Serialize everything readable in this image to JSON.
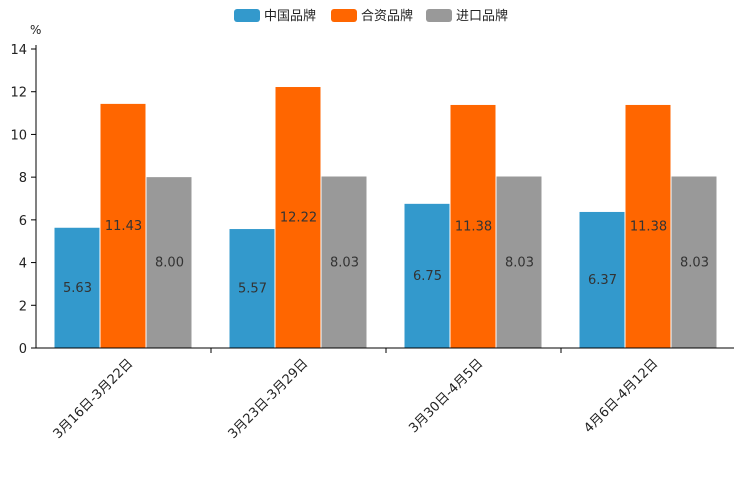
{
  "chart_data": {
    "type": "bar",
    "title": "",
    "ylabel": "%",
    "xlabel": "",
    "ylim": [
      0,
      14
    ],
    "yticks": [
      0,
      2,
      4,
      6,
      8,
      10,
      12,
      14
    ],
    "grid": false,
    "legend_position": "top-center",
    "categories": [
      "3月16日-3月22日",
      "3月23日-3月29日",
      "3月30日-4月5日",
      "4月6日-4月12日"
    ],
    "series": [
      {
        "name": "中国品牌",
        "color": "#3399cc",
        "values": [
          5.63,
          5.57,
          6.75,
          6.37
        ],
        "labels": [
          "5.63",
          "5.57",
          "6.75",
          "6.37"
        ]
      },
      {
        "name": "合资品牌",
        "color": "#ff6600",
        "values": [
          11.43,
          12.22,
          11.38,
          11.38
        ],
        "labels": [
          "11.43",
          "12.22",
          "11.38",
          "11.38"
        ]
      },
      {
        "name": "进口品牌",
        "color": "#999999",
        "values": [
          8.0,
          8.03,
          8.03,
          8.03
        ],
        "labels": [
          "8.00",
          "8.03",
          "8.03",
          "8.03"
        ]
      }
    ]
  }
}
